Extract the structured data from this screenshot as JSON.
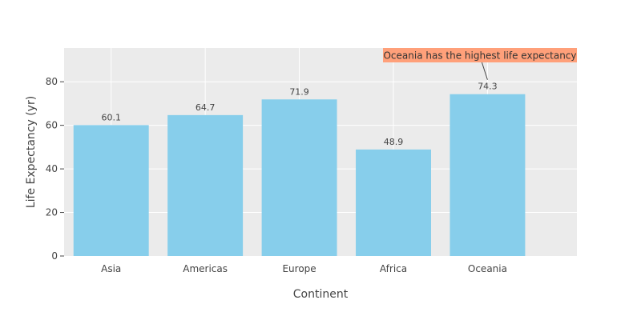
{
  "chart_data": {
    "type": "bar",
    "title": "",
    "xlabel": "Continent",
    "ylabel": "Life Expectancy (yr)",
    "categories": [
      "Asia",
      "Americas",
      "Europe",
      "Africa",
      "Oceania"
    ],
    "values": [
      60.1,
      64.7,
      71.9,
      48.9,
      74.3
    ],
    "data_labels": [
      "60.1",
      "64.7",
      "71.9",
      "48.9",
      "74.3"
    ],
    "ylim": [
      0,
      95.5
    ],
    "yticks": [
      0,
      20,
      40,
      60,
      80
    ],
    "grid": true,
    "bar_color": "#87CEEB",
    "plot_background": "#EBEBEB",
    "annotation": {
      "text": "Oceania has the highest life expectancy",
      "target_category": "Oceania",
      "background": "#FFA07A"
    }
  }
}
